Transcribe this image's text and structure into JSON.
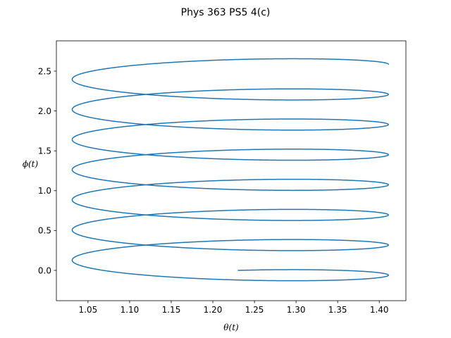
{
  "chart_data": {
    "type": "line",
    "title": "Phys 363 PS5 4(c)",
    "xlabel": "θ(t)",
    "ylabel": "ϕ(t)",
    "xlim": [
      1.012,
      1.432
    ],
    "ylim": [
      -0.38,
      2.88
    ],
    "xticks": [
      1.05,
      1.1,
      1.15,
      1.2,
      1.25,
      1.3,
      1.35,
      1.4
    ],
    "yticks": [
      0.0,
      0.5,
      1.0,
      1.5,
      2.0,
      2.5
    ],
    "xtick_labels": [
      "1.05",
      "1.10",
      "1.15",
      "1.20",
      "1.25",
      "1.30",
      "1.35",
      "1.40"
    ],
    "ytick_labels": [
      "0.0",
      "0.5",
      "1.0",
      "1.5",
      "2.0",
      "2.5"
    ],
    "grid": false,
    "line_color": "#1f77b4",
    "series": [
      {
        "name": "",
        "curve": {
          "theta_center": 1.221,
          "theta_amplitude": 0.19,
          "theta_start": 1.23,
          "phi_amplitude": 0.152,
          "phi_drift_per_cycle": 0.378,
          "phi_start": 0.0,
          "cycles": 7.25
        }
      }
    ]
  }
}
